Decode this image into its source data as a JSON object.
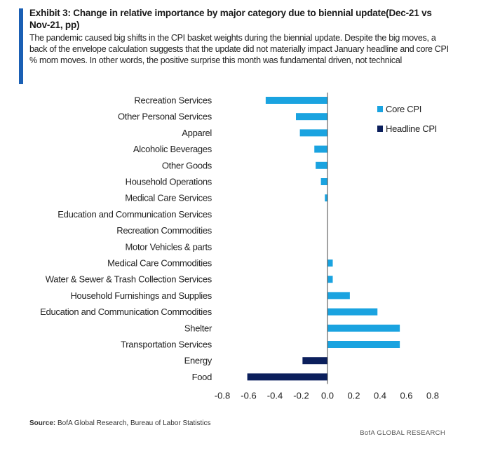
{
  "header": {
    "title": "Exhibit 3: Change in relative importance by major category due to biennial update(Dec-21 vs Nov-21, pp)",
    "subtitle": "The pandemic caused big shifts in the CPI basket weights during the biennial update. Despite the big moves, a back of the envelope calculation suggests that the update did not materially impact January headline and core CPI % mom moves. In other words, the positive surprise this month was fundamental driven, not technical"
  },
  "footer": {
    "source_label": "Source:",
    "source_text": "BofA Global Research, Bureau of Labor Statistics",
    "brand": "BofA GLOBAL RESEARCH"
  },
  "colors": {
    "core": "#1aa3e0",
    "headline": "#0b1f5c",
    "accent": "#1a5fb4"
  },
  "chart_data": {
    "type": "bar",
    "orientation": "horizontal",
    "title": "",
    "xlabel": "",
    "ylabel": "",
    "xlim": [
      -0.8,
      0.8
    ],
    "x_ticks": [
      "-0.8",
      "-0.6",
      "-0.4",
      "-0.2",
      "0.0",
      "0.2",
      "0.4",
      "0.6",
      "0.8"
    ],
    "x_tick_values": [
      -0.8,
      -0.6,
      -0.4,
      -0.2,
      0.0,
      0.2,
      0.4,
      0.6,
      0.8
    ],
    "grid": false,
    "legend_position": "top-right",
    "categories": [
      "Recreation Services",
      "Other Personal Services",
      "Apparel",
      "Alcoholic Beverages",
      "Other Goods",
      "Household Operations",
      "Medical Care Services",
      "Education and Communication Services",
      "Recreation Commodities",
      "Motor Vehicles & parts",
      "Medical Care Commodities",
      "Water & Sewer & Trash Collection Services",
      "Household Furnishings and Supplies",
      "Education and Communication Commodities",
      "Shelter",
      "Transportation Services",
      "Energy",
      "Food"
    ],
    "series": [
      {
        "name": "Core CPI",
        "values": [
          -0.47,
          -0.24,
          -0.21,
          -0.1,
          -0.09,
          -0.05,
          -0.02,
          0.0,
          0.0,
          0.0,
          0.04,
          0.04,
          0.17,
          0.38,
          0.55,
          0.55,
          null,
          null
        ]
      },
      {
        "name": "Headline CPI",
        "values": [
          null,
          null,
          null,
          null,
          null,
          null,
          null,
          null,
          null,
          null,
          null,
          null,
          null,
          null,
          null,
          null,
          -0.19,
          -0.61
        ]
      }
    ]
  }
}
